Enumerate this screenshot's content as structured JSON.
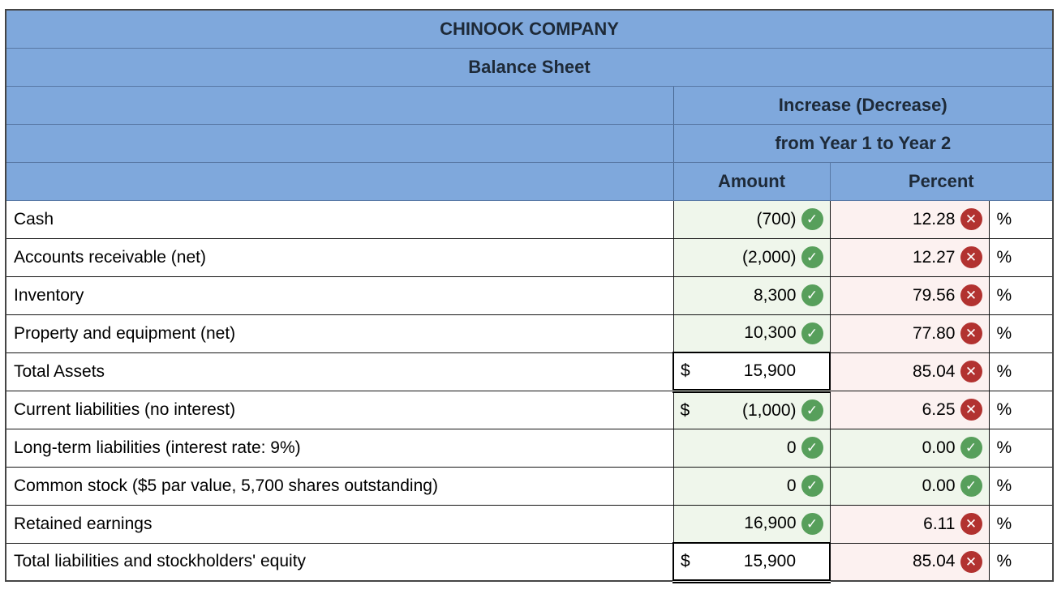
{
  "title": {
    "company": "CHINOOK COMPANY",
    "statement": "Balance Sheet"
  },
  "header": {
    "change_line1": "Increase (Decrease)",
    "change_line2": "from Year 1 to Year 2",
    "amount_col": "Amount",
    "percent_col": "Percent"
  },
  "icons": {
    "check": "✓",
    "cross": "✕"
  },
  "colors": {
    "header_bg": "#7fa8dc",
    "header_text": "#1e2a38",
    "green_cell_bg": "#eff6eb",
    "pink_cell_bg": "#fcf1f0",
    "check_green": "#579f5b",
    "cross_red": "#b23230"
  },
  "rows": [
    {
      "label": "Cash",
      "dollar": "",
      "amount": "(700)",
      "amount_icon": "check",
      "amount_style": "green",
      "percent": "12.28",
      "percent_icon": "cross",
      "percent_style": "pink",
      "unit": "%"
    },
    {
      "label": "Accounts receivable (net)",
      "dollar": "",
      "amount": "(2,000)",
      "amount_icon": "check",
      "amount_style": "green",
      "percent": "12.27",
      "percent_icon": "cross",
      "percent_style": "pink",
      "unit": "%"
    },
    {
      "label": "Inventory",
      "dollar": "",
      "amount": "8,300",
      "amount_icon": "check",
      "amount_style": "green",
      "percent": "79.56",
      "percent_icon": "cross",
      "percent_style": "pink",
      "unit": "%"
    },
    {
      "label": "Property and equipment (net)",
      "dollar": "",
      "amount": "10,300",
      "amount_icon": "check",
      "amount_style": "green",
      "percent": "77.80",
      "percent_icon": "cross",
      "percent_style": "pink",
      "unit": "%"
    },
    {
      "label": "Total Assets",
      "dollar": "$",
      "amount": "15,900",
      "amount_icon": "none",
      "amount_style": "total",
      "percent": "85.04",
      "percent_icon": "cross",
      "percent_style": "pink",
      "unit": "%"
    },
    {
      "label": "Current liabilities (no interest)",
      "dollar": "$",
      "amount": "(1,000)",
      "amount_icon": "check",
      "amount_style": "green",
      "percent": "6.25",
      "percent_icon": "cross",
      "percent_style": "pink",
      "unit": "%"
    },
    {
      "label": "Long-term liabilities (interest rate: 9%)",
      "dollar": "",
      "amount": "0",
      "amount_icon": "check",
      "amount_style": "green",
      "percent": "0.00",
      "percent_icon": "check",
      "percent_style": "green",
      "unit": "%"
    },
    {
      "label": "Common stock ($5 par value, 5,700 shares outstanding)",
      "dollar": "",
      "amount": "0",
      "amount_icon": "check",
      "amount_style": "green",
      "percent": "0.00",
      "percent_icon": "check",
      "percent_style": "green",
      "unit": "%"
    },
    {
      "label": "Retained earnings",
      "dollar": "",
      "amount": "16,900",
      "amount_icon": "check",
      "amount_style": "green",
      "percent": "6.11",
      "percent_icon": "cross",
      "percent_style": "pink",
      "unit": "%"
    },
    {
      "label": "Total liabilities and stockholders' equity",
      "dollar": "$",
      "amount": "15,900",
      "amount_icon": "none",
      "amount_style": "total",
      "percent": "85.04",
      "percent_icon": "cross",
      "percent_style": "pink",
      "unit": "%"
    }
  ]
}
